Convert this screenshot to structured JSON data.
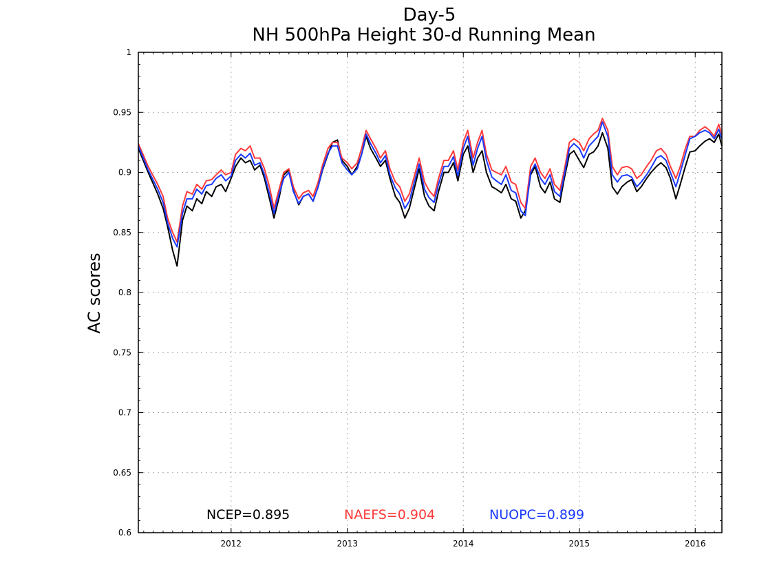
{
  "chart_data": {
    "type": "line",
    "title": "Day-5",
    "subtitle": "NH 500hPa Height 30-d Running Mean",
    "xlabel": "",
    "ylabel": "AC scores",
    "xlim": [
      "2011-03-15",
      "2016-03-25"
    ],
    "ylim": [
      0.6,
      1.0
    ],
    "x_ticks": [
      "2012",
      "2013",
      "2014",
      "2015",
      "2016"
    ],
    "y_ticks": [
      "0.6",
      "0.65",
      "0.7",
      "0.75",
      "0.8",
      "0.85",
      "0.9",
      "0.95",
      "1"
    ],
    "grid": true,
    "legend_position": "bottom",
    "x": [
      "2011-03-15",
      "2011-04-15",
      "2011-05-15",
      "2011-06-01",
      "2011-06-15",
      "2011-07-01",
      "2011-07-15",
      "2011-08-01",
      "2011-08-15",
      "2011-09-01",
      "2011-09-15",
      "2011-10-01",
      "2011-10-15",
      "2011-11-01",
      "2011-11-15",
      "2011-12-01",
      "2011-12-15",
      "2012-01-01",
      "2012-01-15",
      "2012-02-01",
      "2012-02-15",
      "2012-03-01",
      "2012-03-15",
      "2012-04-01",
      "2012-04-15",
      "2012-05-01",
      "2012-05-15",
      "2012-06-01",
      "2012-06-15",
      "2012-07-01",
      "2012-07-15",
      "2012-08-01",
      "2012-08-15",
      "2012-09-01",
      "2012-09-15",
      "2012-10-01",
      "2012-10-15",
      "2012-11-01",
      "2012-11-15",
      "2012-12-01",
      "2012-12-15",
      "2013-01-01",
      "2013-01-15",
      "2013-02-01",
      "2013-02-15",
      "2013-03-01",
      "2013-03-15",
      "2013-04-01",
      "2013-04-15",
      "2013-05-01",
      "2013-05-15",
      "2013-06-01",
      "2013-06-15",
      "2013-07-01",
      "2013-07-15",
      "2013-08-01",
      "2013-08-15",
      "2013-09-01",
      "2013-09-15",
      "2013-10-01",
      "2013-10-15",
      "2013-11-01",
      "2013-11-15",
      "2013-12-01",
      "2013-12-15",
      "2014-01-01",
      "2014-01-15",
      "2014-02-01",
      "2014-02-15",
      "2014-03-01",
      "2014-03-15",
      "2014-04-01",
      "2014-04-15",
      "2014-05-01",
      "2014-05-15",
      "2014-06-01",
      "2014-06-15",
      "2014-07-01",
      "2014-07-15",
      "2014-08-01",
      "2014-08-15",
      "2014-09-01",
      "2014-09-15",
      "2014-10-01",
      "2014-10-15",
      "2014-11-01",
      "2014-11-15",
      "2014-12-01",
      "2014-12-15",
      "2015-01-01",
      "2015-01-15",
      "2015-02-01",
      "2015-02-15",
      "2015-03-01",
      "2015-03-15",
      "2015-04-01",
      "2015-04-15",
      "2015-05-01",
      "2015-05-15",
      "2015-06-01",
      "2015-06-15",
      "2015-07-01",
      "2015-07-15",
      "2015-08-01",
      "2015-08-15",
      "2015-09-01",
      "2015-09-15",
      "2015-10-01",
      "2015-10-15",
      "2015-11-01",
      "2015-11-15",
      "2015-12-01",
      "2015-12-15",
      "2016-01-01",
      "2016-01-15",
      "2016-02-01",
      "2016-02-15",
      "2016-03-01",
      "2016-03-15",
      "2016-03-25"
    ],
    "series": [
      {
        "name": "NCEP",
        "color": "#000000",
        "values": [
          0.92,
          0.9,
          0.882,
          0.87,
          0.855,
          0.835,
          0.822,
          0.86,
          0.872,
          0.868,
          0.878,
          0.874,
          0.884,
          0.88,
          0.888,
          0.89,
          0.884,
          0.895,
          0.905,
          0.912,
          0.908,
          0.91,
          0.902,
          0.906,
          0.895,
          0.878,
          0.862,
          0.88,
          0.898,
          0.902,
          0.885,
          0.873,
          0.88,
          0.882,
          0.876,
          0.888,
          0.902,
          0.915,
          0.925,
          0.927,
          0.91,
          0.905,
          0.898,
          0.905,
          0.915,
          0.93,
          0.92,
          0.912,
          0.905,
          0.91,
          0.895,
          0.88,
          0.875,
          0.862,
          0.87,
          0.888,
          0.903,
          0.88,
          0.872,
          0.868,
          0.884,
          0.9,
          0.9,
          0.908,
          0.893,
          0.915,
          0.922,
          0.9,
          0.912,
          0.918,
          0.9,
          0.888,
          0.886,
          0.883,
          0.89,
          0.878,
          0.876,
          0.862,
          0.868,
          0.898,
          0.905,
          0.888,
          0.883,
          0.892,
          0.878,
          0.875,
          0.895,
          0.915,
          0.918,
          0.91,
          0.904,
          0.915,
          0.917,
          0.922,
          0.933,
          0.92,
          0.888,
          0.882,
          0.888,
          0.892,
          0.894,
          0.884,
          0.888,
          0.895,
          0.9,
          0.905,
          0.908,
          0.904,
          0.895,
          0.878,
          0.89,
          0.905,
          0.917,
          0.918,
          0.922,
          0.926,
          0.928,
          0.925,
          0.932,
          0.922
        ]
      },
      {
        "name": "NAEFS",
        "color": "#ff3a3a",
        "values": [
          0.924,
          0.905,
          0.89,
          0.88,
          0.862,
          0.85,
          0.842,
          0.872,
          0.884,
          0.882,
          0.89,
          0.886,
          0.893,
          0.894,
          0.898,
          0.902,
          0.898,
          0.9,
          0.915,
          0.92,
          0.918,
          0.922,
          0.912,
          0.912,
          0.903,
          0.888,
          0.87,
          0.887,
          0.9,
          0.903,
          0.888,
          0.878,
          0.883,
          0.885,
          0.88,
          0.892,
          0.906,
          0.92,
          0.925,
          0.925,
          0.912,
          0.908,
          0.903,
          0.908,
          0.92,
          0.935,
          0.928,
          0.92,
          0.912,
          0.918,
          0.903,
          0.892,
          0.888,
          0.876,
          0.882,
          0.898,
          0.912,
          0.892,
          0.885,
          0.88,
          0.895,
          0.91,
          0.91,
          0.918,
          0.902,
          0.925,
          0.935,
          0.912,
          0.925,
          0.935,
          0.915,
          0.902,
          0.9,
          0.898,
          0.905,
          0.892,
          0.89,
          0.875,
          0.87,
          0.905,
          0.912,
          0.9,
          0.895,
          0.903,
          0.89,
          0.885,
          0.902,
          0.925,
          0.928,
          0.925,
          0.918,
          0.928,
          0.932,
          0.935,
          0.945,
          0.935,
          0.905,
          0.898,
          0.904,
          0.905,
          0.903,
          0.895,
          0.898,
          0.905,
          0.91,
          0.918,
          0.92,
          0.915,
          0.905,
          0.895,
          0.905,
          0.92,
          0.93,
          0.93,
          0.935,
          0.938,
          0.935,
          0.93,
          0.94,
          0.932
        ]
      },
      {
        "name": "NUOPC",
        "color": "#1a3aff",
        "values": [
          0.922,
          0.902,
          0.886,
          0.875,
          0.858,
          0.845,
          0.838,
          0.866,
          0.878,
          0.878,
          0.886,
          0.882,
          0.889,
          0.89,
          0.895,
          0.898,
          0.893,
          0.897,
          0.91,
          0.915,
          0.912,
          0.916,
          0.906,
          0.908,
          0.898,
          0.882,
          0.866,
          0.883,
          0.895,
          0.9,
          0.884,
          0.874,
          0.88,
          0.882,
          0.876,
          0.888,
          0.903,
          0.916,
          0.922,
          0.922,
          0.908,
          0.902,
          0.898,
          0.903,
          0.915,
          0.932,
          0.924,
          0.916,
          0.908,
          0.914,
          0.898,
          0.887,
          0.882,
          0.87,
          0.876,
          0.893,
          0.907,
          0.886,
          0.879,
          0.875,
          0.89,
          0.905,
          0.905,
          0.913,
          0.897,
          0.92,
          0.93,
          0.906,
          0.92,
          0.93,
          0.91,
          0.896,
          0.893,
          0.89,
          0.898,
          0.885,
          0.883,
          0.868,
          0.864,
          0.9,
          0.907,
          0.895,
          0.89,
          0.898,
          0.884,
          0.88,
          0.898,
          0.92,
          0.924,
          0.92,
          0.912,
          0.922,
          0.926,
          0.93,
          0.942,
          0.93,
          0.898,
          0.892,
          0.897,
          0.898,
          0.896,
          0.888,
          0.892,
          0.898,
          0.904,
          0.912,
          0.914,
          0.91,
          0.9,
          0.888,
          0.9,
          0.915,
          0.928,
          0.93,
          0.933,
          0.935,
          0.933,
          0.928,
          0.936,
          0.928
        ]
      }
    ],
    "legend_entries": [
      {
        "label": "NCEP=0.895",
        "color": "#000000"
      },
      {
        "label": "NAEFS=0.904",
        "color": "#ff3a3a"
      },
      {
        "label": "NUOPC=0.899",
        "color": "#1a3aff"
      }
    ]
  }
}
